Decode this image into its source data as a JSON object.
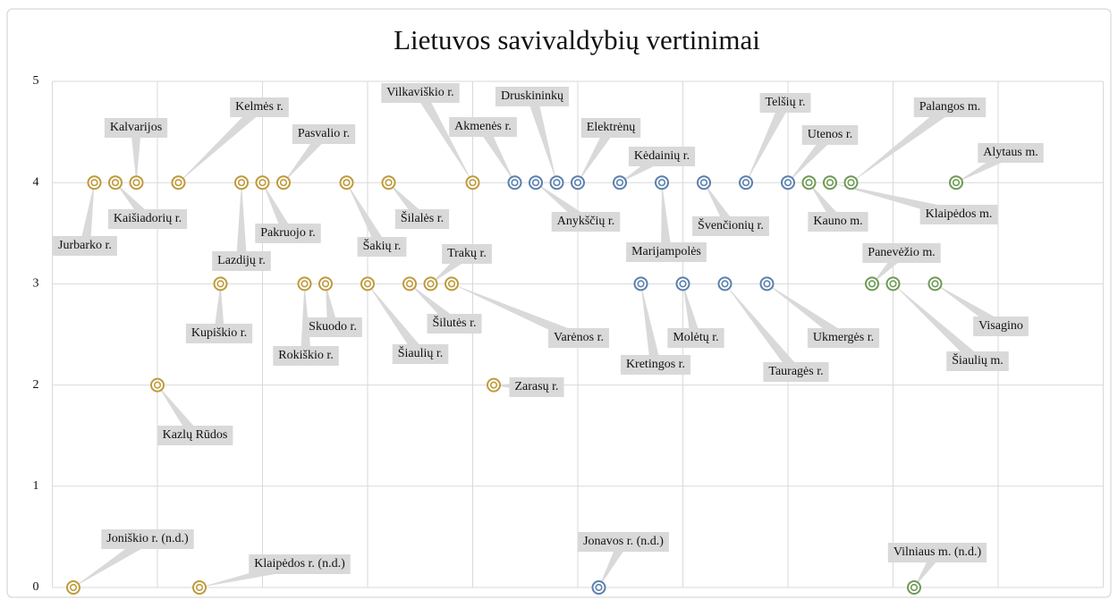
{
  "chart_data": {
    "type": "scatter",
    "title": "Lietuvos savivaldybių vertinimai",
    "xlim": [
      0,
      50
    ],
    "xticks": [
      0,
      5,
      10,
      15,
      20,
      25,
      30,
      35,
      40,
      45,
      50
    ],
    "ylim": [
      0,
      5
    ],
    "yticks": [
      0,
      1,
      2,
      3,
      4,
      5
    ],
    "grid": true,
    "series": [
      {
        "color": "#bf9a3c",
        "x": [
          1,
          2,
          3,
          4,
          5,
          6,
          7,
          8,
          9,
          10,
          11,
          12,
          13,
          14,
          15,
          16,
          17,
          18,
          19,
          20,
          21
        ],
        "values": [
          0,
          4,
          4,
          4,
          2,
          4,
          0,
          3,
          4,
          4,
          4,
          3,
          3,
          4,
          3,
          4,
          3,
          3,
          3,
          4,
          2
        ],
        "labels": [
          "Joniškio r. (n.d.)",
          "Jurbarko r.",
          "Kaišiadorių r.",
          "Kalvarijos",
          "Kazlų Rūdos",
          "Kelmės r.",
          "Klaipėdos r. (n.d.)",
          "Kupiškio r.",
          "Lazdijų r.",
          "Pakruojo r.",
          "Pasvalio r.",
          "Rokiškio r.",
          "Skuodo r.",
          "Šakių r.",
          "Šiaulių r.",
          "Šilalės r.",
          "Šilutės r.",
          "Trakų r.",
          "Varėnos r.",
          "Vilkaviškio r.",
          "Zarasų r."
        ]
      },
      {
        "color": "#5a80ad",
        "x": [
          22,
          23,
          24,
          25,
          26,
          27,
          28,
          29,
          30,
          31,
          32,
          33,
          34,
          35
        ],
        "values": [
          4,
          4,
          4,
          4,
          0,
          4,
          3,
          4,
          3,
          4,
          3,
          4,
          3,
          4
        ],
        "labels": [
          "Akmenės r.",
          "Anykščių r.",
          "Druskininkų",
          "Elektrėnų",
          "Jonavos r. (n.d.)",
          "Kėdainių r.",
          "Kretingos r.",
          "Marijampolės",
          "Molėtų r.",
          "Švenčionių r.",
          "Tauragės r.",
          "Telšių r.",
          "Ukmergės r.",
          "Utenos r."
        ]
      },
      {
        "color": "#6e9a55",
        "x": [
          36,
          37,
          38,
          39,
          40,
          41,
          42,
          43
        ],
        "values": [
          4,
          4,
          4,
          3,
          3,
          0,
          3,
          4
        ],
        "labels": [
          "Kauno m.",
          "Klaipėdos m.",
          "Palangos m.",
          "Panevėžio m.",
          "Šiaulių m.",
          "Vilniaus m. (n.d.)",
          "Visagino",
          "Alytaus m."
        ]
      }
    ]
  }
}
